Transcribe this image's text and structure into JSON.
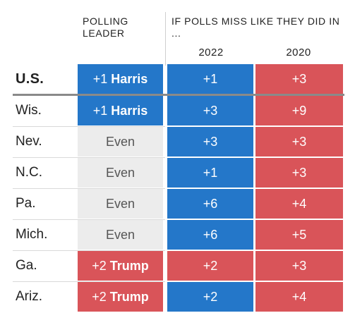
{
  "header": {
    "polling_leader": "POLLING LEADER",
    "if_polls_miss": "IF POLLS MISS LIKE THEY DID IN ...",
    "year_a": "2022",
    "year_b": "2020"
  },
  "colors": {
    "blue": "#2477c9",
    "red": "#d95459",
    "gray": "#ececec",
    "white_text": "#ffffff",
    "gray_text": "#555555"
  },
  "rows": [
    {
      "state": "U.S.",
      "lead_num": "+1",
      "lead_name": "Harris",
      "lead_color": "blue",
      "miss_2022": "+1",
      "color_2022": "blue",
      "miss_2020": "+3",
      "color_2020": "red"
    },
    {
      "state": "Wis.",
      "lead_num": "+1",
      "lead_name": "Harris",
      "lead_color": "blue",
      "miss_2022": "+3",
      "color_2022": "blue",
      "miss_2020": "+9",
      "color_2020": "red"
    },
    {
      "state": "Nev.",
      "lead_num": "Even",
      "lead_name": "",
      "lead_color": "gray",
      "miss_2022": "+3",
      "color_2022": "blue",
      "miss_2020": "+3",
      "color_2020": "red"
    },
    {
      "state": "N.C.",
      "lead_num": "Even",
      "lead_name": "",
      "lead_color": "gray",
      "miss_2022": "+1",
      "color_2022": "blue",
      "miss_2020": "+3",
      "color_2020": "red"
    },
    {
      "state": "Pa.",
      "lead_num": "Even",
      "lead_name": "",
      "lead_color": "gray",
      "miss_2022": "+6",
      "color_2022": "blue",
      "miss_2020": "+4",
      "color_2020": "red"
    },
    {
      "state": "Mich.",
      "lead_num": "Even",
      "lead_name": "",
      "lead_color": "gray",
      "miss_2022": "+6",
      "color_2022": "blue",
      "miss_2020": "+5",
      "color_2020": "red"
    },
    {
      "state": "Ga.",
      "lead_num": "+2",
      "lead_name": "Trump",
      "lead_color": "red",
      "miss_2022": "+2",
      "color_2022": "red",
      "miss_2020": "+3",
      "color_2020": "red"
    },
    {
      "state": "Ariz.",
      "lead_num": "+2",
      "lead_name": "Trump",
      "lead_color": "red",
      "miss_2022": "+2",
      "color_2022": "blue",
      "miss_2020": "+4",
      "color_2020": "red"
    }
  ]
}
